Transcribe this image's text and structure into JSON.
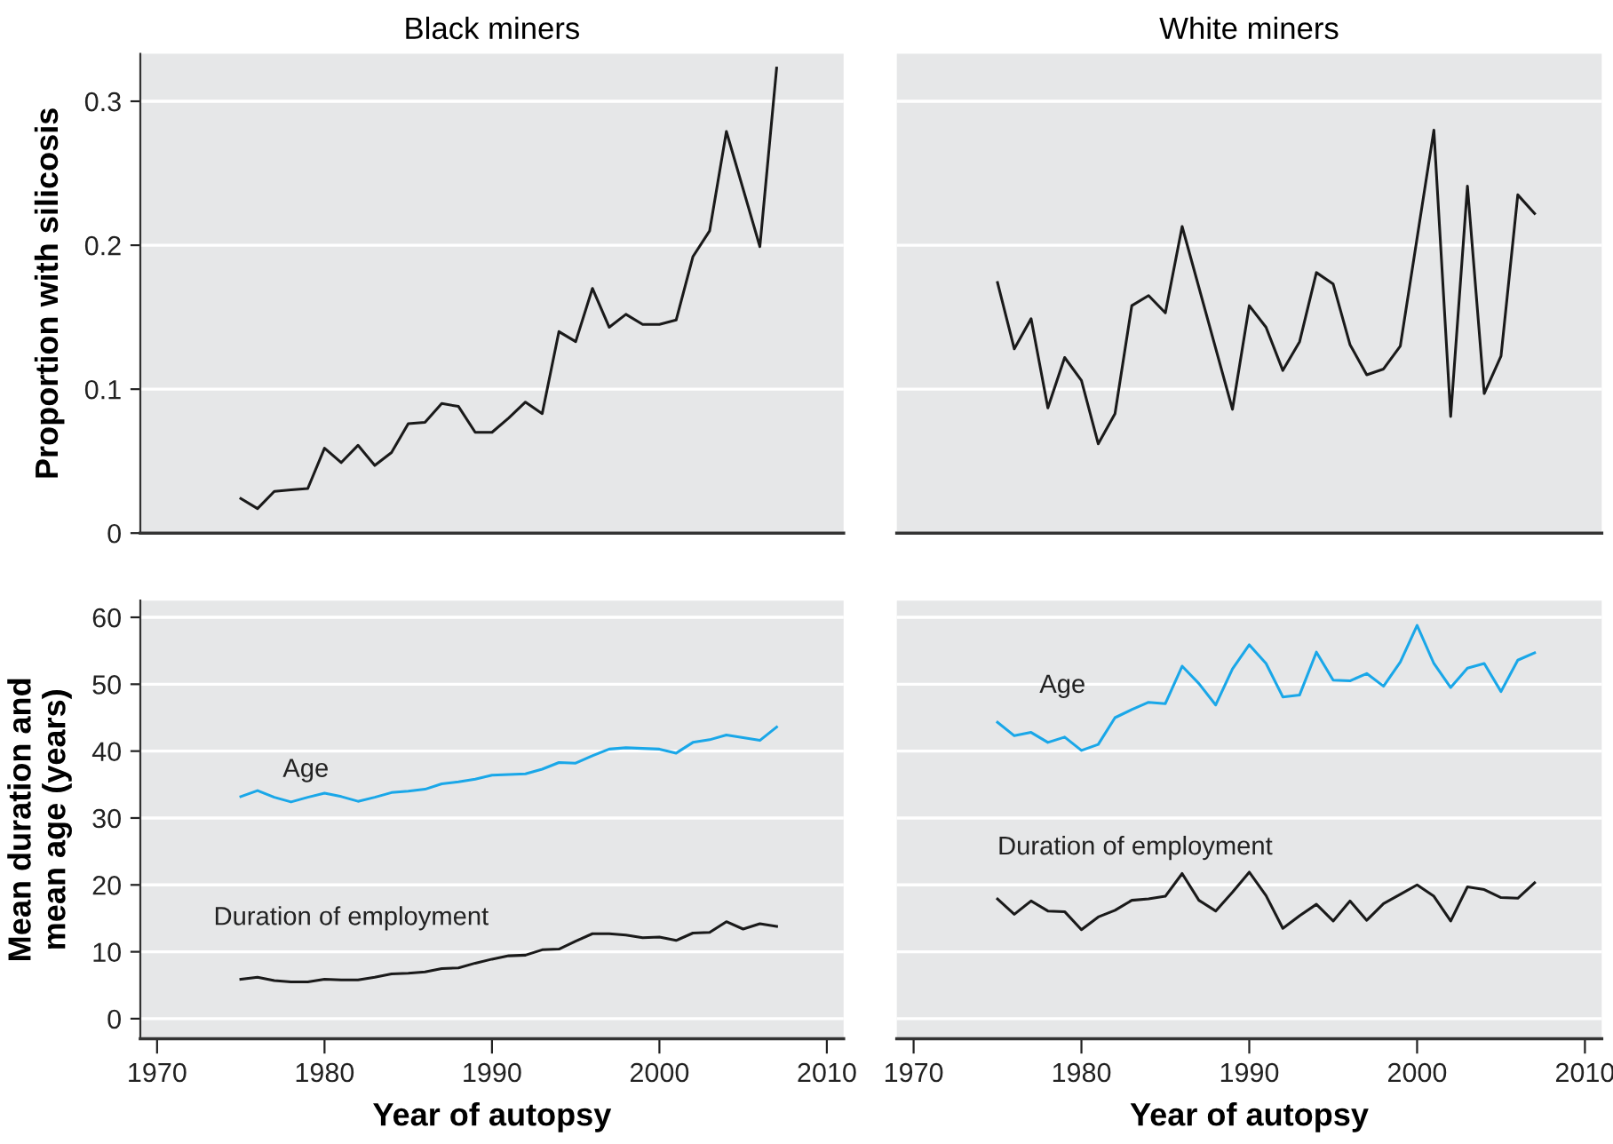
{
  "chart_data": [
    {
      "type": "line",
      "title": "Black miners",
      "ylabel": "Proportion with silicosis",
      "xlim": [
        1969,
        2011
      ],
      "ylim": [
        0,
        0.333
      ],
      "yticks": [
        0,
        0.1,
        0.2,
        0.3
      ],
      "tick_labels": "y",
      "grid": "y",
      "legend": false,
      "series": [
        {
          "color": "#1a1a1a",
          "x": [
            1975,
            1976,
            1977,
            1978,
            1979,
            1980,
            1981,
            1982,
            1983,
            1984,
            1985,
            1986,
            1987,
            1988,
            1989,
            1990,
            1991,
            1992,
            1993,
            1994,
            1995,
            1996,
            1997,
            1998,
            1999,
            2000,
            2001,
            2002,
            2003,
            2004,
            2006,
            2007
          ],
          "values": [
            0.024,
            0.017,
            0.029,
            0.03,
            0.031,
            0.059,
            0.049,
            0.061,
            0.047,
            0.056,
            0.076,
            0.077,
            0.09,
            0.088,
            0.07,
            0.07,
            0.08,
            0.091,
            0.083,
            0.14,
            0.133,
            0.17,
            0.143,
            0.152,
            0.145,
            0.145,
            0.148,
            0.192,
            0.21,
            0.279,
            0.199,
            0.323
          ]
        }
      ]
    },
    {
      "type": "line",
      "title": "White miners",
      "xlim": [
        1969,
        2011
      ],
      "ylim": [
        0,
        0.333
      ],
      "yticks": [
        0,
        0.1,
        0.2,
        0.3
      ],
      "tick_labels": false,
      "grid": "y",
      "legend": false,
      "series": [
        {
          "color": "#1a1a1a",
          "x": [
            1975,
            1976,
            1977,
            1978,
            1979,
            1980,
            1981,
            1982,
            1983,
            1984,
            1985,
            1986,
            1989,
            1990,
            1991,
            1992,
            1993,
            1994,
            1995,
            1996,
            1997,
            1998,
            1999,
            2001,
            2002,
            2003,
            2004,
            2005,
            2006,
            2007
          ],
          "values": [
            0.174,
            0.128,
            0.149,
            0.087,
            0.122,
            0.106,
            0.062,
            0.083,
            0.158,
            0.165,
            0.153,
            0.213,
            0.086,
            0.158,
            0.143,
            0.113,
            0.133,
            0.181,
            0.173,
            0.131,
            0.11,
            0.114,
            0.13,
            0.28,
            0.081,
            0.241,
            0.097,
            0.123,
            0.235,
            0.222
          ]
        }
      ]
    },
    {
      "type": "line",
      "xlabel": "Year of autopsy",
      "ylabel": "Mean duration and\nmean age (years)",
      "xlim": [
        1969,
        2011
      ],
      "xticks": [
        1970,
        1980,
        1990,
        2000,
        2010
      ],
      "ylim": [
        -3,
        62.5
      ],
      "yticks": [
        0,
        10,
        20,
        30,
        40,
        50,
        60
      ],
      "grid": "y",
      "legend": false,
      "x": [
        1975,
        1976,
        1977,
        1978,
        1979,
        1980,
        1981,
        1982,
        1983,
        1984,
        1985,
        1986,
        1987,
        1988,
        1989,
        1990,
        1991,
        1992,
        1993,
        1994,
        1995,
        1996,
        1997,
        1998,
        1999,
        2000,
        2001,
        2002,
        2003,
        2004,
        2005,
        2006,
        2007
      ],
      "series": [
        {
          "name": "Age",
          "color": "#1aa7e8",
          "values": [
            33.2,
            34.1,
            33.1,
            32.4,
            33.1,
            33.7,
            33.2,
            32.5,
            33.1,
            33.8,
            34.0,
            34.3,
            35.1,
            35.4,
            35.8,
            36.4,
            36.5,
            36.6,
            37.3,
            38.3,
            38.2,
            39.3,
            40.3,
            40.5,
            40.4,
            40.3,
            39.7,
            41.3,
            41.7,
            42.4,
            42.0,
            41.6,
            43.6
          ]
        },
        {
          "name": "Duration of employment",
          "color": "#1a1a1a",
          "values": [
            5.9,
            6.2,
            5.7,
            5.5,
            5.5,
            5.9,
            5.8,
            5.8,
            6.2,
            6.7,
            6.8,
            7.0,
            7.5,
            7.6,
            8.3,
            8.9,
            9.4,
            9.5,
            10.3,
            10.4,
            11.6,
            12.7,
            12.7,
            12.5,
            12.1,
            12.2,
            11.7,
            12.8,
            12.9,
            14.5,
            13.4,
            14.2,
            13.8
          ]
        }
      ]
    },
    {
      "type": "line",
      "xlabel": "Year of autopsy",
      "xlim": [
        1969,
        2011
      ],
      "xticks": [
        1970,
        1980,
        1990,
        2000,
        2010
      ],
      "ylim": [
        -3,
        62.5
      ],
      "yticks": [
        0,
        10,
        20,
        30,
        40,
        50,
        60
      ],
      "tick_labels": "x",
      "grid": "y",
      "legend": false,
      "x": [
        1975,
        1976,
        1977,
        1978,
        1979,
        1980,
        1981,
        1982,
        1983,
        1984,
        1985,
        1986,
        1987,
        1988,
        1989,
        1990,
        1991,
        1992,
        1993,
        1994,
        1995,
        1996,
        1997,
        1998,
        1999,
        2000,
        2001,
        2002,
        2003,
        2004,
        2005,
        2006,
        2007
      ],
      "series": [
        {
          "name": "Age",
          "color": "#1aa7e8",
          "values": [
            44.3,
            42.3,
            42.8,
            41.3,
            42.1,
            40.1,
            41.0,
            45.0,
            46.2,
            47.3,
            47.1,
            52.7,
            50.1,
            46.9,
            52.3,
            55.9,
            53.1,
            48.1,
            48.4,
            54.8,
            50.6,
            50.5,
            51.6,
            49.7,
            53.3,
            58.8,
            53.1,
            49.5,
            52.4,
            53.1,
            48.9,
            53.6,
            54.7
          ]
        },
        {
          "name": "Duration of employment",
          "color": "#1a1a1a",
          "values": [
            17.9,
            15.6,
            17.6,
            16.1,
            16.0,
            13.3,
            15.2,
            16.2,
            17.7,
            17.9,
            18.3,
            21.7,
            17.7,
            16.1,
            18.9,
            21.9,
            18.4,
            13.5,
            15.4,
            17.1,
            14.6,
            17.6,
            14.7,
            17.2,
            18.6,
            20.0,
            18.3,
            14.6,
            19.7,
            19.3,
            18.1,
            18.0,
            20.3
          ]
        }
      ]
    }
  ]
}
